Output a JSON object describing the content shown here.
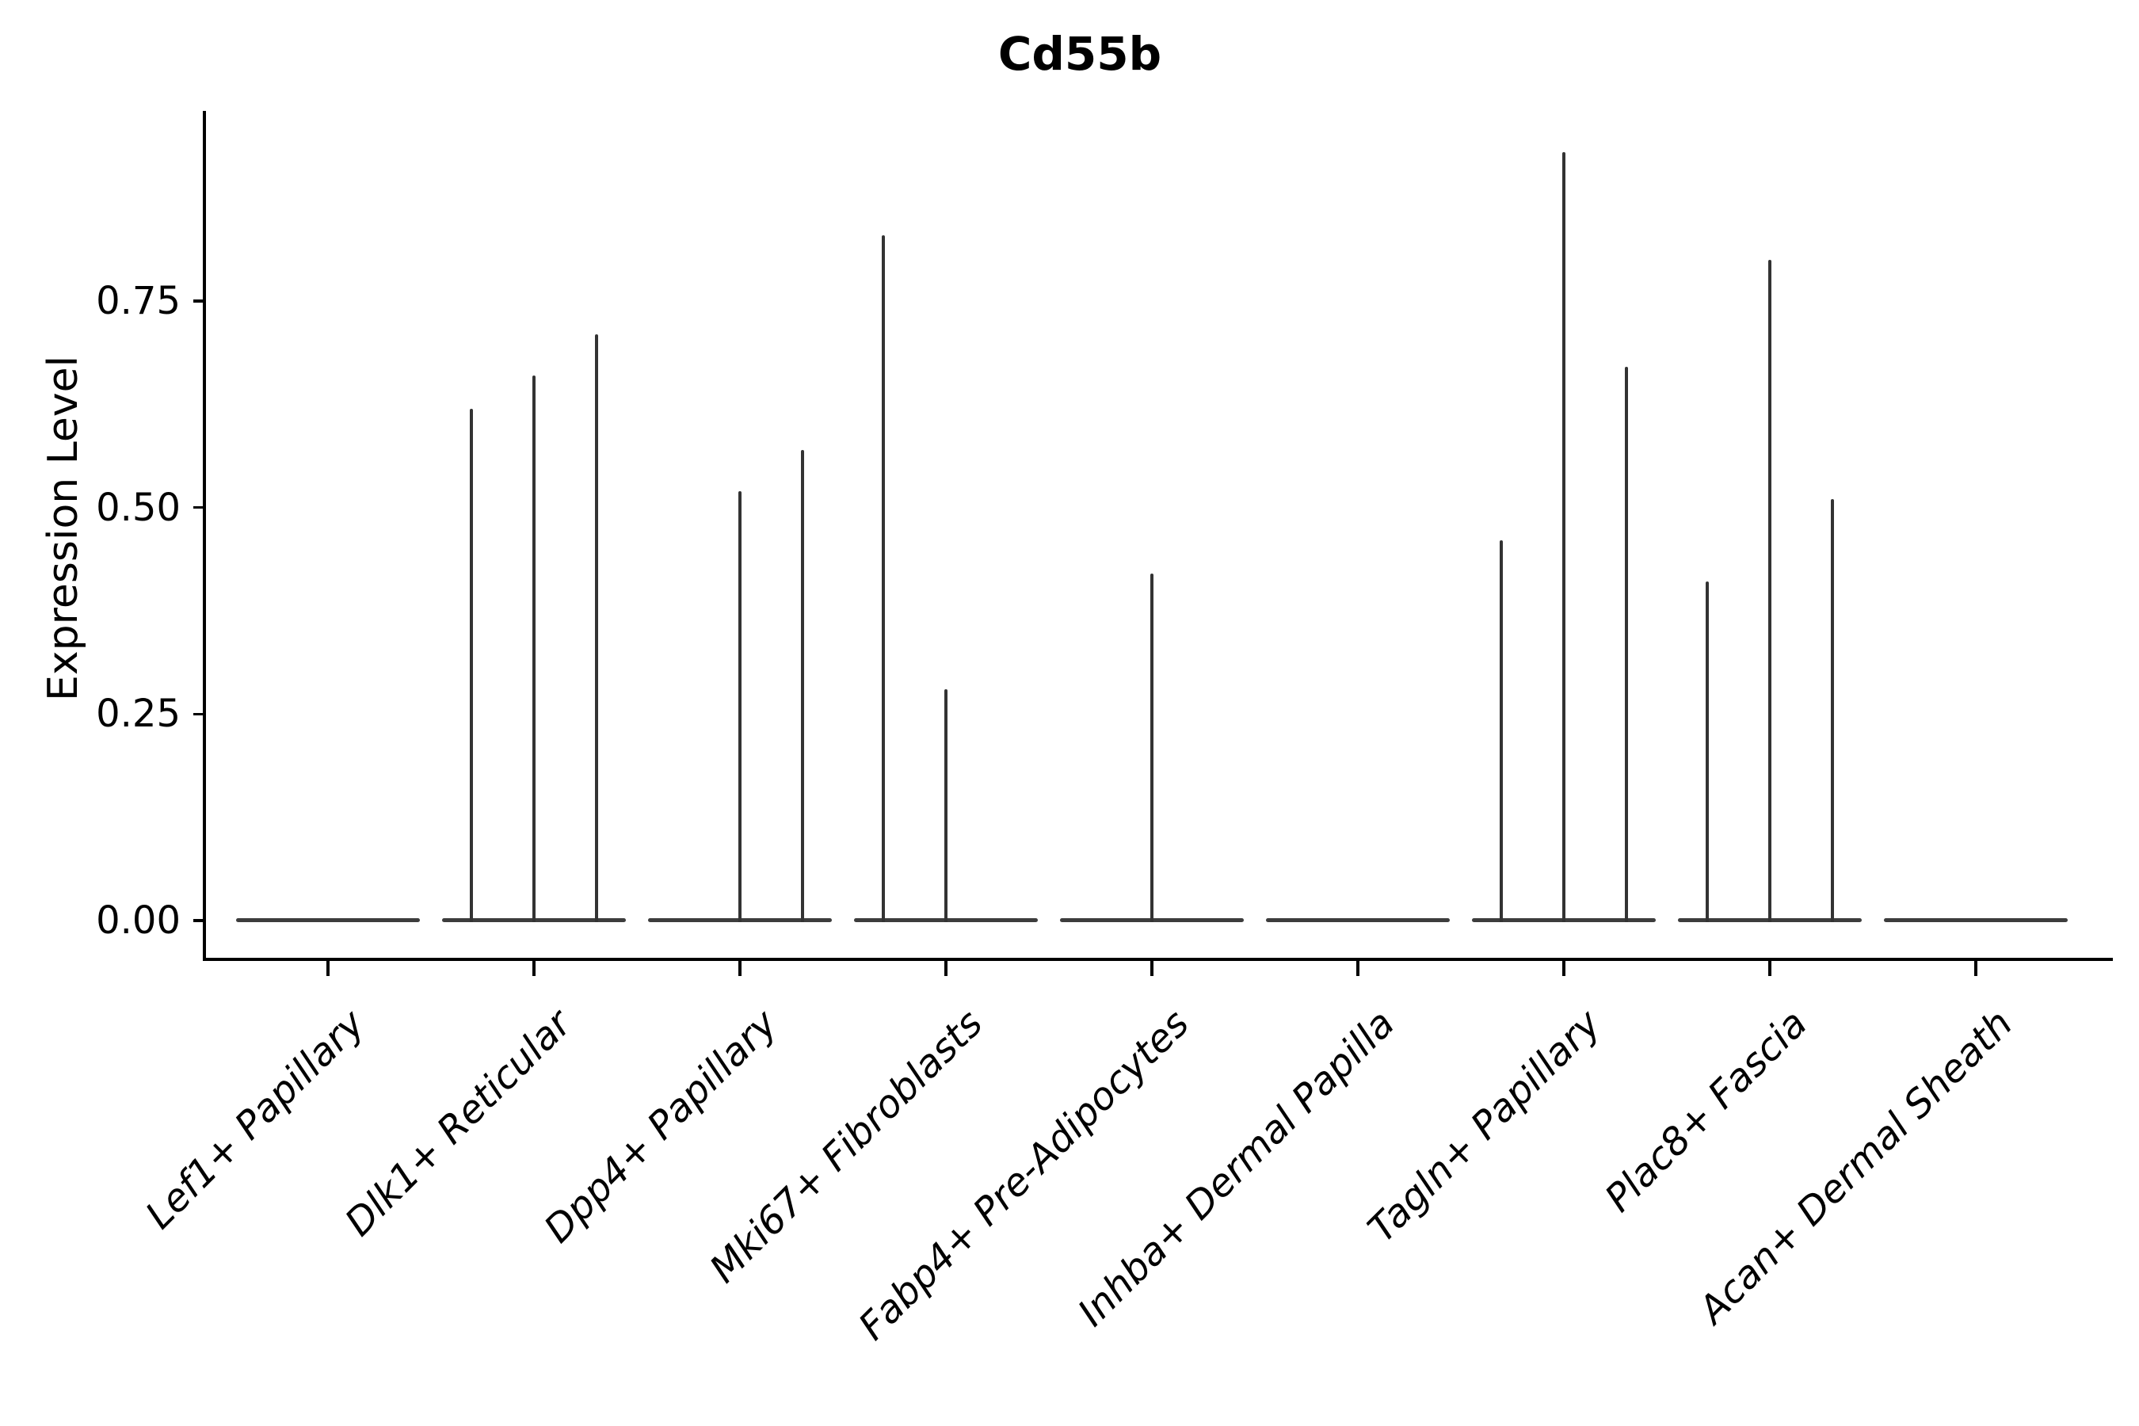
{
  "chart_data": {
    "type": "violin",
    "title": "Cd55b",
    "ylabel": "Expression Level",
    "xlabel": "",
    "ylim": [
      -0.05,
      1.0
    ],
    "grid": false,
    "legend": "none",
    "yticks": [
      {
        "label": "0.00",
        "value": 0.0
      },
      {
        "label": "0.25",
        "value": 0.25
      },
      {
        "label": "0.50",
        "value": 0.5
      },
      {
        "label": "0.75",
        "value": 0.75
      }
    ],
    "categories": [
      "Lef1+ Papillary",
      "Dlk1+ Reticular",
      "Dpp4+ Papillary",
      "Mki67+ Fibroblasts",
      "Fabp4+ Pre-Adipocytes",
      "Inhba+ Dermal Papilla",
      "Tagln+ Papillary",
      "Plac8+ Fascia",
      "Acan+ Dermal Sheath"
    ],
    "violins_per_category": 3,
    "series": [
      {
        "category": "Lef1+ Papillary",
        "spike_peaks": [
          0,
          0,
          0
        ]
      },
      {
        "category": "Dlk1+ Reticular",
        "spike_peaks": [
          0.62,
          0.66,
          0.71
        ]
      },
      {
        "category": "Dpp4+ Papillary",
        "spike_peaks": [
          0,
          0.52,
          0.57
        ]
      },
      {
        "category": "Mki67+ Fibroblasts",
        "spike_peaks": [
          0.83,
          0.28,
          0
        ]
      },
      {
        "category": "Fabp4+ Pre-Adipocytes",
        "spike_peaks": [
          0,
          0.42,
          0
        ]
      },
      {
        "category": "Inhba+ Dermal Papilla",
        "spike_peaks": [
          0,
          0,
          0
        ]
      },
      {
        "category": "Tagln+ Papillary",
        "spike_peaks": [
          0.46,
          0.93,
          0.67
        ]
      },
      {
        "category": "Plac8+ Fascia",
        "spike_peaks": [
          0.41,
          0.8,
          0.51
        ]
      },
      {
        "category": "Acan+ Dermal Sheath",
        "spike_peaks": [
          0,
          0,
          0
        ]
      }
    ],
    "colors": {
      "spike": "#333333",
      "baseline": "#3d3d3d",
      "axis": "#000000",
      "text": "#000000"
    }
  }
}
